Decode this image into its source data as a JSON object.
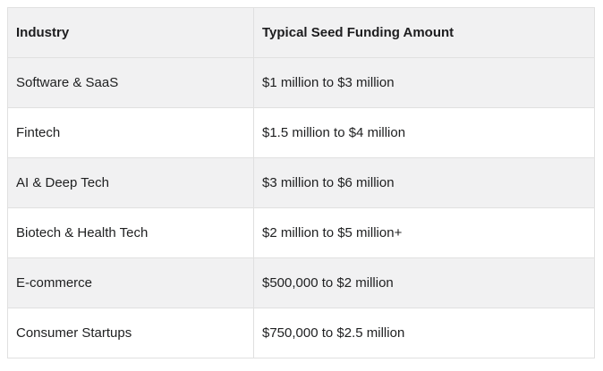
{
  "chart_data": {
    "type": "table",
    "columns": [
      "Industry",
      "Typical Seed Funding Amount"
    ],
    "rows": [
      [
        "Software & SaaS",
        "$1 million to $3 million"
      ],
      [
        "Fintech",
        "$1.5 million to $4 million"
      ],
      [
        "AI & Deep Tech",
        "$3 million to $6 million"
      ],
      [
        "Biotech & Health Tech",
        "$2 million to $5 million+"
      ],
      [
        "E-commerce",
        "$500,000 to $2 million"
      ],
      [
        "Consumer Startups",
        "$750,000 to $2.5 million"
      ]
    ],
    "layout": {
      "header_background": "#f1f1f2",
      "stripe_background": "#f1f1f2",
      "border_color": "#e0e0e0",
      "striping": "header and odd body rows shaded, starting with first body row"
    }
  },
  "colors": {
    "page_background": "#ffffff",
    "header_bg": "#f1f1f2",
    "stripe_bg": "#f1f1f2",
    "border": "#e0e0e0",
    "text": "#202122"
  }
}
